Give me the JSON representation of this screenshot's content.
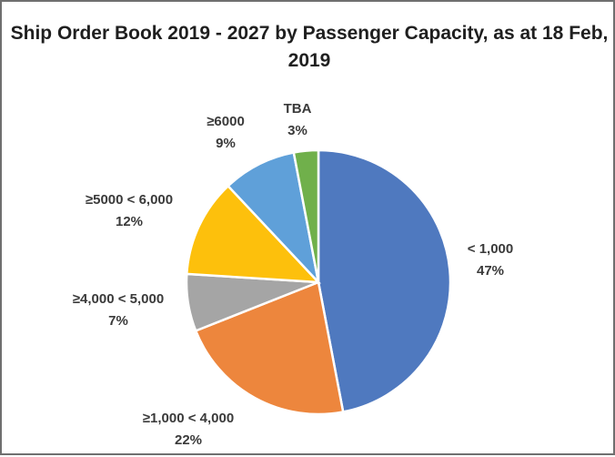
{
  "chart_data": {
    "type": "pie",
    "title": "Ship Order Book 2019 - 2027 by Passenger Capacity, as at 18 Feb, 2019",
    "slices": [
      {
        "label": "< 1,000",
        "value": 47,
        "value_label": "47%",
        "color": "#4f79bf"
      },
      {
        "label": "≥1,000 < 4,000",
        "value": 22,
        "value_label": "22%",
        "color": "#ed863d"
      },
      {
        "label": "≥4,000 < 5,000",
        "value": 7,
        "value_label": "7%",
        "color": "#a5a5a5"
      },
      {
        "label": "≥5000 < 6,000",
        "value": 12,
        "value_label": "12%",
        "color": "#fdc00c"
      },
      {
        "label": "≥6000",
        "value": 9,
        "value_label": "9%",
        "color": "#5fa0d9"
      },
      {
        "label": "TBA",
        "value": 3,
        "value_label": "3%",
        "color": "#70b04b"
      }
    ],
    "start_angle_deg": 0,
    "direction": "clockwise"
  }
}
